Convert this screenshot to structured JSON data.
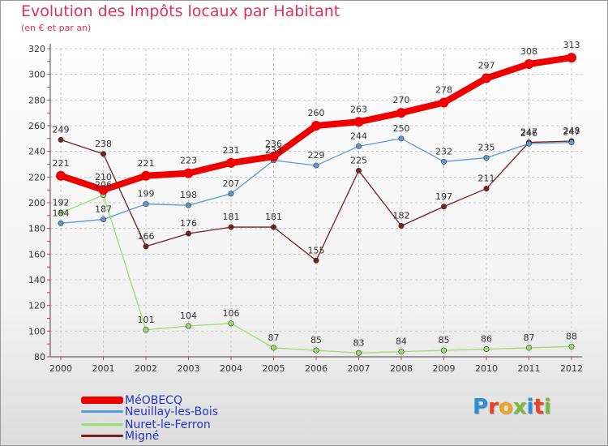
{
  "header": {
    "title": "Evolution des Impôts locaux par Habitant",
    "subtitle": "(en € et par an)"
  },
  "brand": {
    "logo_text": "Proxiti",
    "letter_colors": [
      "#2a8fd6",
      "#e8402a",
      "#f2a31b",
      "#7ab93a",
      "#2a8fd6",
      "#e8402a",
      "#7ab93a"
    ]
  },
  "chart_data": {
    "type": "line",
    "x": [
      "2000",
      "2001",
      "2002",
      "2003",
      "2004",
      "2005",
      "2006",
      "2007",
      "2008",
      "2009",
      "2010",
      "2011",
      "2012"
    ],
    "yticks": [
      "80",
      "100",
      "120",
      "140",
      "160",
      "180",
      "200",
      "220",
      "240",
      "260",
      "280",
      "300",
      "320"
    ],
    "ylim": [
      80,
      320
    ],
    "grid": true,
    "legend_position": "bottom-left",
    "series": [
      {
        "name": "MéOBECQ",
        "color": "#ee0000",
        "thick": true,
        "values": [
          221,
          210,
          221,
          223,
          231,
          236,
          260,
          263,
          270,
          278,
          297,
          308,
          313
        ],
        "labels": [
          "221",
          "210",
          "221",
          "223",
          "231",
          "236",
          "260",
          "263",
          "270",
          "278",
          "297",
          "308",
          "313"
        ]
      },
      {
        "name": "Neuillay-les-Bois",
        "color": "#5b9bd5",
        "thick": false,
        "values": [
          184,
          187,
          199,
          198,
          207,
          233,
          229,
          244,
          250,
          232,
          235,
          246,
          247
        ],
        "labels": [
          "184",
          "187",
          "199",
          "198",
          "207",
          "233",
          "229",
          "244",
          "250",
          "232",
          "235",
          "246",
          "247"
        ]
      },
      {
        "name": "Nuret-le-Ferron",
        "color": "#99e06b",
        "thick": false,
        "values": [
          192,
          206,
          101,
          104,
          106,
          87,
          85,
          83,
          84,
          85,
          86,
          87,
          88
        ],
        "labels": [
          "192",
          "206",
          "101",
          "104",
          "106",
          "87",
          "85",
          "83",
          "84",
          "85",
          "86",
          "87",
          "88"
        ]
      },
      {
        "name": "Migné",
        "color": "#7a1f1f",
        "thick": false,
        "values": [
          249,
          238,
          166,
          176,
          181,
          181,
          155,
          225,
          182,
          197,
          211,
          247,
          248
        ],
        "labels": [
          "249",
          "238",
          "166",
          "176",
          "181",
          "181",
          "155",
          "225",
          "182",
          "197",
          "211",
          "247",
          "248"
        ]
      }
    ]
  }
}
